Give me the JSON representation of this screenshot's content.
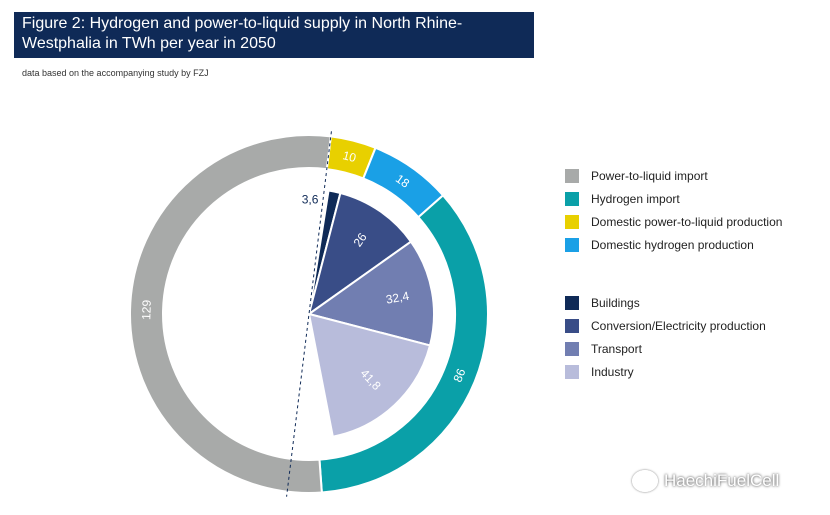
{
  "title": "Figure 2: Hydrogen and power-to-liquid supply in North Rhine-Westphalia in TWh per year in 2050",
  "subtitle": "data based on the accompanying study by FZJ",
  "watermark": "HaechiFuelCell",
  "watermark_icon": "wechat-icon",
  "chart_data": [
    {
      "type": "pie",
      "variant": "donut",
      "slices": [
        {
          "label": "Domestic power-to-liquid production",
          "value": 10,
          "value_label": "10",
          "color": "#e8d000"
        },
        {
          "label": "Domestic hydrogen production",
          "value": 18,
          "value_label": "18",
          "color": "#1aa0e6"
        },
        {
          "label": "Hydrogen import",
          "value": 86,
          "value_label": "86",
          "color": "#0aa0a8"
        },
        {
          "label": "Power-to-liquid import",
          "value": 129,
          "value_label": "129",
          "color": "#a8aaa9"
        }
      ]
    },
    {
      "type": "pie",
      "variant": "inner-half-pie",
      "slices": [
        {
          "label": "Buildings",
          "value": 3.6,
          "value_label": "3,6",
          "color": "#0f2a57"
        },
        {
          "label": "Conversion/Electricity production",
          "value": 26,
          "value_label": "26",
          "color": "#394d87"
        },
        {
          "label": "Transport",
          "value": 32.4,
          "value_label": "32,4",
          "color": "#717eb1"
        },
        {
          "label": "Industry",
          "value": 41.8,
          "value_label": "41,8",
          "color": "#b8bcdb"
        }
      ]
    }
  ],
  "legend": {
    "supply": [
      {
        "label": "Power-to-liquid import",
        "color": "#a8aaa9"
      },
      {
        "label": "Hydrogen import",
        "color": "#0aa0a8"
      },
      {
        "label": "Domestic power-to-liquid production",
        "color": "#e8d000"
      },
      {
        "label": "Domestic hydrogen production",
        "color": "#1aa0e6"
      }
    ],
    "demand": [
      {
        "label": "Buildings",
        "color": "#0f2a57"
      },
      {
        "label": "Conversion/Electricity production",
        "color": "#394d87"
      },
      {
        "label": "Transport",
        "color": "#717eb1"
      },
      {
        "label": "Industry",
        "color": "#b8bcdb"
      }
    ]
  }
}
